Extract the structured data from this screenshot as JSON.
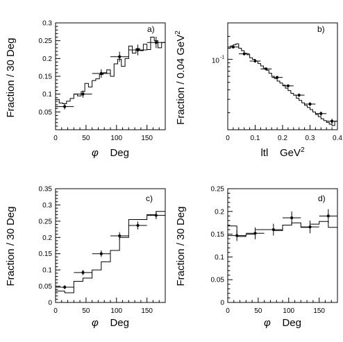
{
  "chart_data": [
    {
      "id": "a",
      "type": "line",
      "panel_label": "a)",
      "ylabel": "Fraction / 30 Deg",
      "xlabel_symbol": "φ",
      "xlabel_unit": "Deg",
      "xlim": [
        0,
        180
      ],
      "ylim": [
        0,
        0.3
      ],
      "xticks": [
        0,
        50,
        100,
        150
      ],
      "yticks": [
        0.05,
        0.1,
        0.15,
        0.2,
        0.25,
        0.3
      ],
      "ytick_labels": [
        "0.05",
        "0.1",
        "0.15",
        "0.2",
        "0.25",
        "0.3"
      ],
      "series": [
        {
          "kind": "histogram",
          "x": [
            0,
            6,
            12,
            18,
            24,
            30,
            36,
            42,
            48,
            54,
            60,
            66,
            72,
            78,
            84,
            90,
            96,
            102,
            108,
            114,
            120,
            126,
            132,
            138,
            144,
            150,
            156,
            162,
            168,
            174,
            180
          ],
          "values": [
            0.085,
            0.075,
            0.073,
            0.08,
            0.088,
            0.1,
            0.095,
            0.107,
            0.13,
            0.12,
            0.138,
            0.143,
            0.155,
            0.16,
            0.168,
            0.15,
            0.185,
            0.198,
            0.178,
            0.2,
            0.235,
            0.215,
            0.228,
            0.222,
            0.24,
            0.225,
            0.26,
            0.25,
            0.23,
            0.245
          ]
        },
        {
          "kind": "points",
          "x": [
            15,
            45,
            75,
            105,
            135,
            165
          ],
          "y": [
            0.065,
            0.1,
            0.158,
            0.205,
            0.224,
            0.245
          ],
          "xerr": 15,
          "yerr": [
            0.008,
            0.01,
            0.012,
            0.014,
            0.015,
            0.016
          ]
        }
      ]
    },
    {
      "id": "b",
      "type": "line",
      "panel_label": "b)",
      "ylabel": "Fraction / 0.04 GeV",
      "ylabel_sup": "2",
      "xlabel_symbol": "ltl",
      "xlabel_unit": "GeV",
      "xlabel_sup": "2",
      "xscale": "linear",
      "yscale": "log",
      "xlim": [
        0,
        0.4
      ],
      "ylim": [
        0.012,
        0.3
      ],
      "xticks": [
        0,
        0.1,
        0.2,
        0.3,
        0.4
      ],
      "yticks": [
        0.1
      ],
      "ytick_labels": [
        "10"
      ],
      "ytick_sup": "-1",
      "series": [
        {
          "kind": "histogram",
          "x": [
            0,
            0.01,
            0.02,
            0.03,
            0.04,
            0.05,
            0.06,
            0.07,
            0.08,
            0.09,
            0.1,
            0.11,
            0.12,
            0.13,
            0.14,
            0.15,
            0.16,
            0.17,
            0.18,
            0.19,
            0.2,
            0.21,
            0.22,
            0.23,
            0.24,
            0.25,
            0.26,
            0.27,
            0.28,
            0.29,
            0.3,
            0.31,
            0.32,
            0.33,
            0.34,
            0.35,
            0.36,
            0.37,
            0.38,
            0.39,
            0.4
          ],
          "values": [
            0.14,
            0.15,
            0.155,
            0.16,
            0.14,
            0.13,
            0.12,
            0.115,
            0.105,
            0.1,
            0.095,
            0.088,
            0.082,
            0.077,
            0.072,
            0.066,
            0.06,
            0.056,
            0.052,
            0.049,
            0.046,
            0.042,
            0.039,
            0.036,
            0.034,
            0.031,
            0.029,
            0.027,
            0.025,
            0.0235,
            0.022,
            0.0205,
            0.019,
            0.0178,
            0.0167,
            0.0158,
            0.015,
            0.0142,
            0.0136,
            0.0155
          ]
        },
        {
          "kind": "points",
          "x": [
            0.02,
            0.06,
            0.1,
            0.14,
            0.18,
            0.22,
            0.26,
            0.3,
            0.34,
            0.38
          ],
          "y": [
            0.145,
            0.118,
            0.095,
            0.075,
            0.058,
            0.045,
            0.034,
            0.026,
            0.0195,
            0.0155
          ],
          "xerr": 0.02,
          "yerr": [
            0.005,
            0.004,
            0.0035,
            0.003,
            0.0025,
            0.002,
            0.0017,
            0.0015,
            0.0013,
            0.0012
          ]
        }
      ]
    },
    {
      "id": "c",
      "type": "line",
      "panel_label": "c)",
      "ylabel": "Fraction / 30 Deg",
      "xlabel_symbol": "φ",
      "xlabel_unit": "Deg",
      "xlim": [
        0,
        180
      ],
      "ylim": [
        0,
        0.35
      ],
      "xticks": [
        0,
        50,
        100,
        150
      ],
      "yticks": [
        0,
        0.05,
        0.1,
        0.15,
        0.2,
        0.25,
        0.3,
        0.35
      ],
      "ytick_labels": [
        "0",
        "0.05",
        "0.1",
        "0.15",
        "0.2",
        "0.25",
        "0.3",
        "0.35"
      ],
      "series": [
        {
          "kind": "histogram",
          "x": [
            0,
            15,
            30,
            45,
            60,
            75,
            90,
            105,
            120,
            135,
            150,
            165,
            180
          ],
          "values": [
            0.035,
            0.03,
            0.065,
            0.075,
            0.1,
            0.125,
            0.16,
            0.2,
            0.255,
            0.255,
            0.27,
            0.28
          ]
        },
        {
          "kind": "points",
          "x": [
            15,
            45,
            75,
            105,
            135,
            165
          ],
          "y": [
            0.047,
            0.092,
            0.15,
            0.205,
            0.237,
            0.268
          ],
          "xerr": 15,
          "yerr": [
            0.006,
            0.008,
            0.01,
            0.011,
            0.012,
            0.012
          ]
        }
      ]
    },
    {
      "id": "d",
      "type": "line",
      "panel_label": "d)",
      "ylabel": "Fraction / 30 Deg",
      "xlabel_symbol": "φ",
      "xlabel_unit": "Deg",
      "xlim": [
        0,
        180
      ],
      "ylim": [
        0,
        0.25
      ],
      "xticks": [
        0,
        50,
        100,
        150
      ],
      "yticks": [
        0,
        0.05,
        0.1,
        0.15,
        0.2,
        0.25
      ],
      "ytick_labels": [
        "0",
        "0.05",
        "0.1",
        "0.15",
        "0.2",
        "0.25"
      ],
      "series": [
        {
          "kind": "histogram",
          "x": [
            0,
            15,
            30,
            45,
            60,
            75,
            90,
            105,
            120,
            135,
            150,
            165,
            180
          ],
          "values": [
            0.168,
            0.145,
            0.15,
            0.16,
            0.16,
            0.158,
            0.17,
            0.175,
            0.165,
            0.172,
            0.178,
            0.165
          ]
        },
        {
          "kind": "points",
          "x": [
            15,
            45,
            75,
            105,
            135,
            165
          ],
          "y": [
            0.147,
            0.152,
            0.16,
            0.186,
            0.166,
            0.19
          ],
          "xerr": 15,
          "yerr": [
            0.012,
            0.013,
            0.013,
            0.014,
            0.014,
            0.015
          ]
        }
      ]
    }
  ]
}
